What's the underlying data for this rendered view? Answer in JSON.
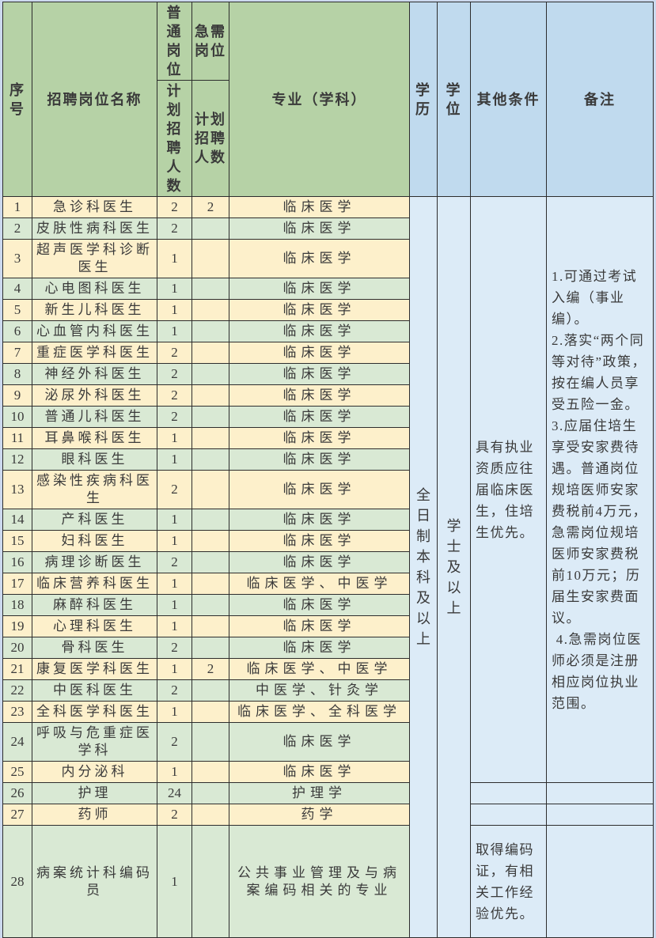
{
  "colors": {
    "page_background": "#ccd9ee",
    "header_green": "#b6d2a6",
    "header_blue": "#c0daee",
    "row_yellow": "#fdf0cb",
    "row_green": "#d9e9d4",
    "cell_blue": "#dcebf7",
    "border": "#2d2d2d",
    "text": "#3a3a3a"
  },
  "header": {
    "col_no": "序号",
    "col_name": "招聘岗位名称",
    "col_regular_top": "普通岗位",
    "col_urgent_top": "急需岗位",
    "col_plan_count": "计划招聘人数",
    "col_major": "专业（学科）",
    "col_education": "学历",
    "col_degree": "学位",
    "col_other": "其他条件",
    "col_remark": "备注"
  },
  "merged": {
    "education": "全日制本科及以上",
    "degree": "学士及以上",
    "other_conditions": "具有执业资质应往届临床医生，住培生优先。",
    "other_conditions_row28": "取得编码证，有相关工作经验优先。",
    "remark": "1.可通过考试入编（事业编）。\n2.落实“两个同等对待”政策，按在编人员享受五险一金。\n3.应届住培生享受安家费待遇。普通岗位规培医师安家费税前4万元，急需岗位规培医师安家费税前10万元；历届生安家费面议。\n 4.急需岗位医师必须是注册相应岗位执业范围。"
  },
  "rows": [
    {
      "no": "1",
      "name": "急诊科医生",
      "regular": "2",
      "urgent": "2",
      "major": "临床医学"
    },
    {
      "no": "2",
      "name": "皮肤性病科医生",
      "regular": "2",
      "urgent": "",
      "major": "临床医学"
    },
    {
      "no": "3",
      "name": "超声医学科诊断医生",
      "regular": "1",
      "urgent": "",
      "major": "临床医学"
    },
    {
      "no": "4",
      "name": "心电图科医生",
      "regular": "1",
      "urgent": "",
      "major": "临床医学"
    },
    {
      "no": "5",
      "name": "新生儿科医生",
      "regular": "1",
      "urgent": "",
      "major": "临床医学"
    },
    {
      "no": "6",
      "name": "心血管内科医生",
      "regular": "1",
      "urgent": "",
      "major": "临床医学"
    },
    {
      "no": "7",
      "name": "重症医学科医生",
      "regular": "2",
      "urgent": "",
      "major": "临床医学"
    },
    {
      "no": "8",
      "name": "神经外科医生",
      "regular": "2",
      "urgent": "",
      "major": "临床医学"
    },
    {
      "no": "9",
      "name": "泌尿外科医生",
      "regular": "2",
      "urgent": "",
      "major": "临床医学"
    },
    {
      "no": "10",
      "name": "普通儿科医生",
      "regular": "2",
      "urgent": "",
      "major": "临床医学"
    },
    {
      "no": "11",
      "name": "耳鼻喉科医生",
      "regular": "1",
      "urgent": "",
      "major": "临床医学"
    },
    {
      "no": "12",
      "name": "眼科医生",
      "regular": "1",
      "urgent": "",
      "major": "临床医学"
    },
    {
      "no": "13",
      "name": "感染性疾病科医生",
      "regular": "2",
      "urgent": "",
      "major": "临床医学"
    },
    {
      "no": "14",
      "name": "产科医生",
      "regular": "1",
      "urgent": "",
      "major": "临床医学"
    },
    {
      "no": "15",
      "name": "妇科医生",
      "regular": "1",
      "urgent": "",
      "major": "临床医学"
    },
    {
      "no": "16",
      "name": "病理诊断医生",
      "regular": "2",
      "urgent": "",
      "major": "临床医学"
    },
    {
      "no": "17",
      "name": "临床营养科医生",
      "regular": "1",
      "urgent": "",
      "major": "临床医学、中医学"
    },
    {
      "no": "18",
      "name": "麻醉科医生",
      "regular": "1",
      "urgent": "",
      "major": "临床医学"
    },
    {
      "no": "19",
      "name": "心理科医生",
      "regular": "1",
      "urgent": "",
      "major": "临床医学"
    },
    {
      "no": "20",
      "name": "骨科医生",
      "regular": "2",
      "urgent": "",
      "major": "临床医学"
    },
    {
      "no": "21",
      "name": "康复医学科医生",
      "regular": "1",
      "urgent": "2",
      "major": "临床医学、中医学"
    },
    {
      "no": "22",
      "name": "中医科医生",
      "regular": "2",
      "urgent": "",
      "major": "中医学、针灸学"
    },
    {
      "no": "23",
      "name": "全科医学科医生",
      "regular": "1",
      "urgent": "",
      "major": "临床医学、全科医学"
    },
    {
      "no": "24",
      "name": "呼吸与危重症医学科",
      "regular": "2",
      "urgent": "",
      "major": "临床医学"
    },
    {
      "no": "25",
      "name": "内分泌科",
      "regular": "1",
      "urgent": "",
      "major": "临床医学"
    },
    {
      "no": "26",
      "name": "护理",
      "regular": "24",
      "urgent": "",
      "major": "护理学"
    },
    {
      "no": "27",
      "name": "药师",
      "regular": "2",
      "urgent": "",
      "major": "药学"
    },
    {
      "no": "28",
      "name": "病案统计科编码员",
      "regular": "1",
      "urgent": "",
      "major": "公共事业管理及与病案编码相关的专业"
    }
  ]
}
